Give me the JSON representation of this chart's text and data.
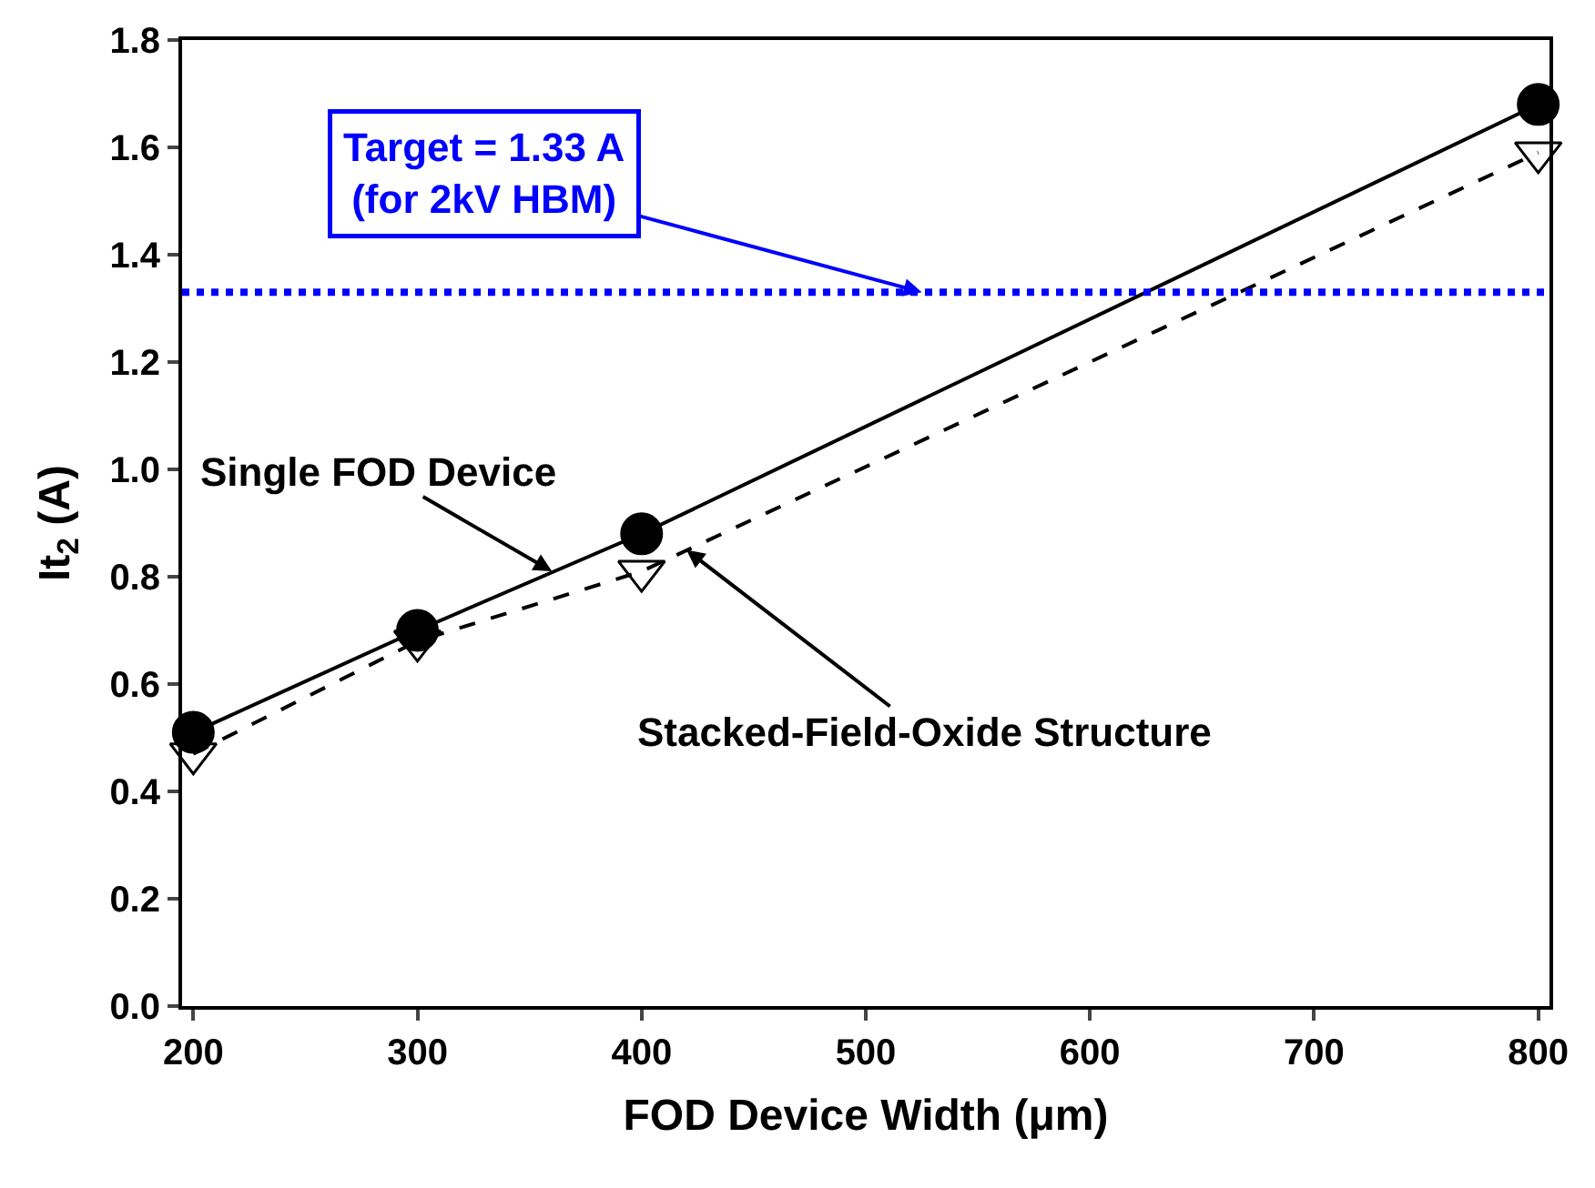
{
  "chart_data": {
    "type": "line",
    "xlabel": "FOD Device Width (μm)",
    "ylabel": "It$_{2}$ (A)",
    "x": [
      200,
      300,
      400,
      800
    ],
    "series": [
      {
        "color": "#000000",
        "values": [
          0.51,
          0.7,
          0.88,
          1.68
        ],
        "marker": "circle",
        "line_style": "solid"
      },
      {
        "color": "#000000",
        "values": [
          0.47,
          0.68,
          0.81,
          1.59
        ],
        "marker": "triangle",
        "line_style": "dashed"
      }
    ],
    "xlim": [
      195,
      805
    ],
    "xticks": [
      200,
      300,
      400,
      500,
      600,
      700,
      800
    ],
    "ylim": [
      0,
      1.8
    ],
    "yticks": [
      {
        "value": 0,
        "label": "0.0"
      },
      0.2,
      0.4,
      0.6,
      0.8,
      {
        "value": 1,
        "label": "1.0"
      },
      1.2,
      1.4,
      1.6,
      1.8
    ],
    "ref_lines": [
      {
        "axis": "y",
        "value": 1.33,
        "label": "Target = 1.33 A\n(for 2kV HBM)",
        "color": "#0000ff",
        "line_style": "dotted"
      }
    ],
    "annotations": [
      {
        "text": "Single FOD Device",
        "x": 360,
        "y": 0.81
      },
      {
        "text": "Stacked-Field-Oxide Structure",
        "x": 420,
        "y": 0.85
      }
    ]
  }
}
